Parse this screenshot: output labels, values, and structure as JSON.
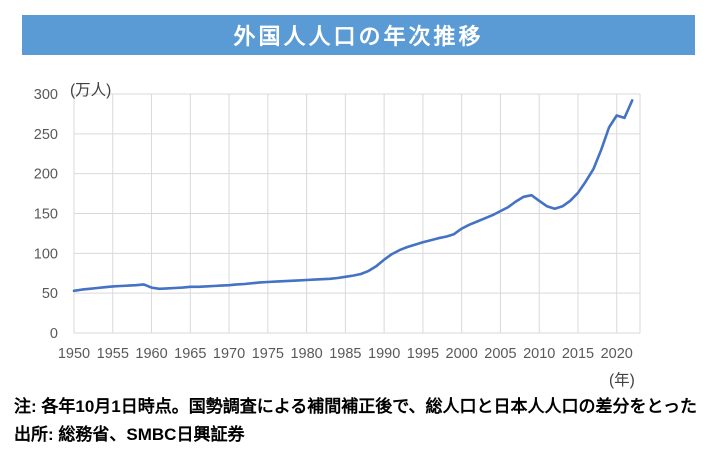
{
  "header": {
    "title": "外国人人口の年次推移"
  },
  "colors": {
    "banner_bg": "#5b9bd5",
    "banner_text": "#ffffff",
    "line": "#4472c4",
    "grid": "#d9d9d9",
    "tick_text": "#595959",
    "axis_unit_text": "#404040"
  },
  "chart_data": {
    "type": "line",
    "title": "外国人人口の年次推移",
    "ylabel": "(万人)",
    "xlabel": "(年)",
    "grid": true,
    "legend_position": "none",
    "xlim": [
      1950,
      2023
    ],
    "ylim": [
      0,
      300
    ],
    "y_ticks": [
      0,
      50,
      100,
      150,
      200,
      250,
      300
    ],
    "x_tick_years": [
      1950,
      1955,
      1960,
      1965,
      1970,
      1975,
      1980,
      1985,
      1990,
      1995,
      2000,
      2005,
      2010,
      2015,
      2020
    ],
    "series": [
      {
        "name": "外国人人口",
        "x": [
          1950,
          1951,
          1952,
          1953,
          1954,
          1955,
          1956,
          1957,
          1958,
          1959,
          1960,
          1961,
          1962,
          1963,
          1964,
          1965,
          1966,
          1967,
          1968,
          1969,
          1970,
          1971,
          1972,
          1973,
          1974,
          1975,
          1976,
          1977,
          1978,
          1979,
          1980,
          1981,
          1982,
          1983,
          1984,
          1985,
          1986,
          1987,
          1988,
          1989,
          1990,
          1991,
          1992,
          1993,
          1994,
          1995,
          1996,
          1997,
          1998,
          1999,
          2000,
          2001,
          2002,
          2003,
          2004,
          2005,
          2006,
          2007,
          2008,
          2009,
          2010,
          2011,
          2012,
          2013,
          2014,
          2015,
          2016,
          2017,
          2018,
          2019,
          2020,
          2021,
          2022
        ],
        "y": [
          53,
          54.5,
          55.5,
          56.5,
          57.5,
          58.5,
          59,
          59.5,
          60,
          61,
          57,
          55.5,
          56,
          56.5,
          57,
          58,
          58,
          58.5,
          59,
          59.5,
          60,
          61,
          61.5,
          62.5,
          63.5,
          64,
          64.5,
          65,
          65.5,
          66,
          66.5,
          67,
          67.5,
          68,
          69,
          70.5,
          72,
          74,
          78,
          84,
          92,
          99,
          104,
          108,
          111,
          114,
          116.5,
          119,
          121,
          124,
          131,
          136,
          140,
          144,
          148,
          153,
          158,
          165,
          171,
          173,
          166,
          159,
          156,
          159,
          166,
          176,
          190,
          206,
          230,
          258,
          273,
          270,
          292
        ]
      }
    ]
  },
  "footnotes": {
    "note": "注: 各年10月1日時点。国勢調査による補間補正後で、総人口と日本人人口の差分をとった",
    "source": "出所: 総務省、SMBC日興証券"
  }
}
